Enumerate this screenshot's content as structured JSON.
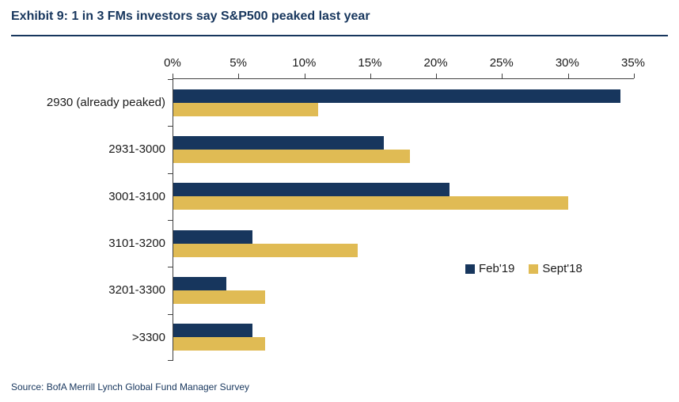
{
  "header": {
    "title": "Exhibit 9: 1 in 3 FMs investors say S&P500 peaked last year"
  },
  "footer": {
    "source": "Source: BofA Merrill Lynch Global Fund Manager Survey"
  },
  "colors": {
    "navy": "#17365D",
    "gold": "#E0BB54",
    "axis": "#404040",
    "title_text": "#17365D",
    "body_text": "#1a1a1a"
  },
  "chart_data": {
    "type": "bar",
    "orientation": "horizontal",
    "title": "Exhibit 9: 1 in 3 FMs investors say S&P500 peaked last year",
    "categories": [
      "2930 (already peaked)",
      "2931-3000",
      "3001-3100",
      "3101-3200",
      "3201-3300",
      ">3300"
    ],
    "series": [
      {
        "name": "Feb'19",
        "color": "#17365D",
        "values": [
          34,
          16,
          21,
          6,
          4,
          6
        ]
      },
      {
        "name": "Sept'18",
        "color": "#E0BB54",
        "values": [
          11,
          18,
          30,
          14,
          7,
          7
        ]
      }
    ],
    "x_ticks": [
      0,
      5,
      10,
      15,
      20,
      25,
      30,
      35
    ],
    "x_tick_suffix": "%",
    "xlim": [
      0,
      35
    ],
    "xlabel": "",
    "ylabel": "",
    "grid": false,
    "legend_position": "center-right",
    "axis_position": "top"
  }
}
